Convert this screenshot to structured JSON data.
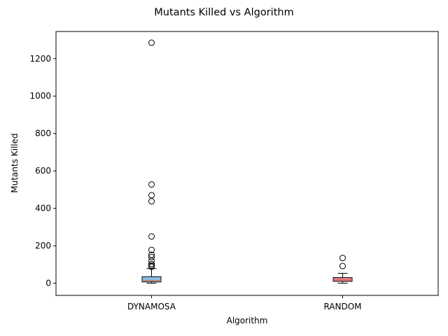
{
  "chart_data": {
    "type": "box",
    "title": "Mutants Killed vs Algorithm",
    "xlabel": "Algorithm",
    "ylabel": "Mutants Killed",
    "ylim": [
      -65,
      1345
    ],
    "yticks": [
      0,
      200,
      400,
      600,
      800,
      1000,
      1200
    ],
    "grid": false,
    "categories": [
      "DYNAMOSA",
      "RANDOM"
    ],
    "boxes": [
      {
        "name": "DYNAMOSA",
        "color": "#87bfe6",
        "whisker_low": 0,
        "q1": 7,
        "median": 15,
        "q3": 35,
        "whisker_high": 78,
        "outliers": [
          1285,
          528,
          470,
          438,
          250,
          178,
          152,
          140,
          120,
          103,
          95,
          88
        ]
      },
      {
        "name": "RANDOM",
        "color": "#e8839a",
        "whisker_low": 0,
        "q1": 10,
        "median": 18,
        "q3": 30,
        "whisker_high": 53,
        "outliers": [
          135,
          92
        ]
      }
    ],
    "median_color": "#e06a3a"
  }
}
